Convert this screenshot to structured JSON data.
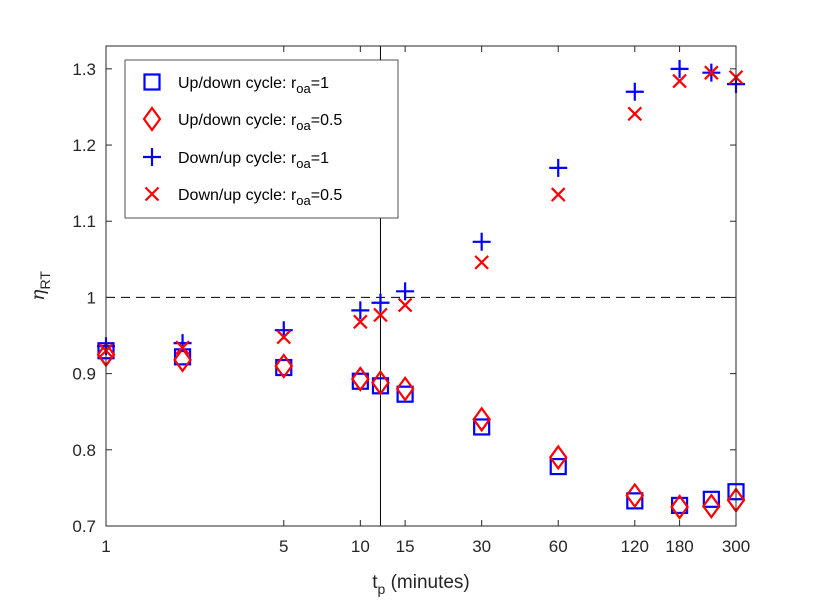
{
  "chart_data": {
    "type": "scatter",
    "xscale": "log",
    "xlim": [
      1,
      300
    ],
    "ylim": [
      0.7,
      1.33
    ],
    "x_ticks": [
      1,
      5,
      10,
      15,
      30,
      60,
      120,
      180,
      300
    ],
    "x_tick_labels": [
      "1",
      "5",
      "10",
      "15",
      "30",
      "60",
      "120",
      "180",
      "300"
    ],
    "y_ticks": [
      0.7,
      0.8,
      0.9,
      1.0,
      1.1,
      1.2,
      1.3
    ],
    "y_tick_labels": [
      "0.7",
      "0.8",
      "0.9",
      "1",
      "1.1",
      "1.2",
      "1.3"
    ],
    "xlabel": {
      "base": "t",
      "sub": "p",
      "rest": " (minutes)"
    },
    "ylabel": {
      "base": "η",
      "sub": "RT"
    },
    "reference_lines": {
      "horizontal_dashed_y": 1.0,
      "vertical_solid_x": 12
    },
    "legend_position": "top-left",
    "series": [
      {
        "name": "Up/down cycle: r_oa=1",
        "label": {
          "prefix": "Up/down cycle: r",
          "sub": "oa",
          "suffix": "=1"
        },
        "marker": "square",
        "color": "#0000ff",
        "x": [
          1,
          2,
          5,
          10,
          12,
          15,
          30,
          60,
          120,
          180,
          240,
          300
        ],
        "y": [
          0.93,
          0.922,
          0.908,
          0.89,
          0.884,
          0.873,
          0.83,
          0.778,
          0.733,
          0.727,
          0.735,
          0.745
        ]
      },
      {
        "name": "Up/down cycle: r_oa=0.5",
        "label": {
          "prefix": "Up/down cycle: r",
          "sub": "oa",
          "suffix": "=0.5"
        },
        "marker": "diamond",
        "color": "#ff0000",
        "x": [
          1,
          2,
          5,
          10,
          12,
          15,
          30,
          60,
          120,
          180,
          240,
          300
        ],
        "y": [
          0.925,
          0.918,
          0.91,
          0.893,
          0.888,
          0.88,
          0.84,
          0.79,
          0.74,
          0.725,
          0.726,
          0.734
        ]
      },
      {
        "name": "Down/up cycle: r_oa=1",
        "label": {
          "prefix": "Down/up cycle: r",
          "sub": "oa",
          "suffix": "=1"
        },
        "marker": "plus",
        "color": "#0000ff",
        "x": [
          1,
          2,
          5,
          10,
          12,
          15,
          30,
          60,
          120,
          180,
          240,
          300
        ],
        "y": [
          0.936,
          0.94,
          0.957,
          0.983,
          0.993,
          1.008,
          1.073,
          1.17,
          1.27,
          1.3,
          1.295,
          1.28
        ]
      },
      {
        "name": "Down/up cycle: r_oa=0.5",
        "label": {
          "prefix": "Down/up cycle: r",
          "sub": "oa",
          "suffix": "=0.5"
        },
        "marker": "x",
        "color": "#ff0000",
        "x": [
          1,
          2,
          5,
          10,
          12,
          15,
          30,
          60,
          120,
          180,
          240,
          300
        ],
        "y": [
          0.93,
          0.934,
          0.948,
          0.968,
          0.977,
          0.99,
          1.046,
          1.135,
          1.241,
          1.284,
          1.295,
          1.289
        ]
      }
    ]
  }
}
